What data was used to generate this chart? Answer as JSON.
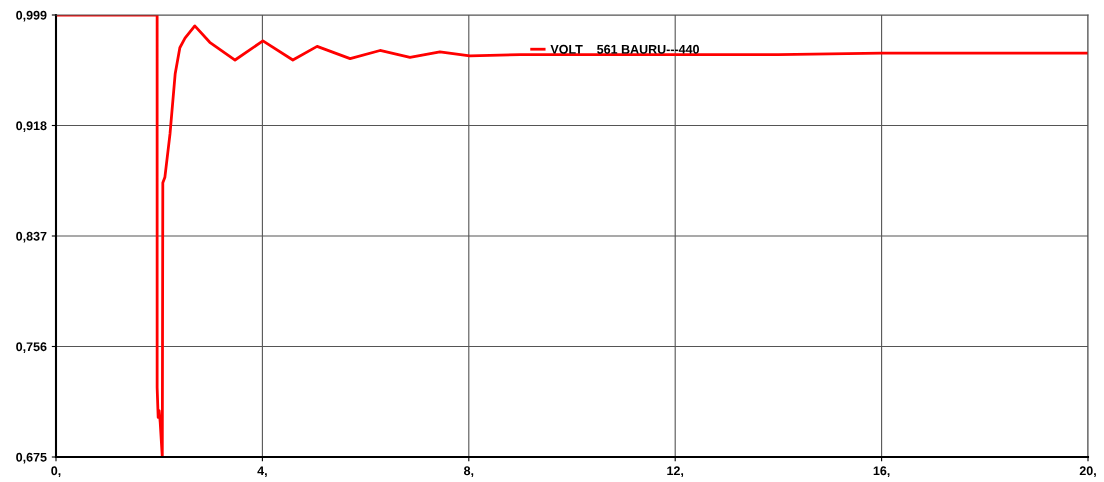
{
  "chart_data": {
    "type": "line",
    "x": [
      0,
      1.96,
      1.96,
      1.98,
      2.0,
      2.02,
      2.06,
      2.07,
      2.11,
      2.21,
      2.31,
      2.4,
      2.5,
      2.69,
      2.98,
      3.47,
      4.01,
      4.59,
      5.06,
      5.7,
      6.28,
      6.86,
      7.44,
      8.02,
      9,
      10,
      12,
      14,
      16,
      18,
      20
    ],
    "series": [
      {
        "name": "VOLT    561 BAURU---440",
        "color": "#ff0000",
        "values": [
          0.999,
          0.999,
          0.726,
          0.704,
          0.709,
          0.7,
          0.675,
          0.876,
          0.88,
          0.912,
          0.956,
          0.975,
          0.982,
          0.991,
          0.979,
          0.966,
          0.98,
          0.966,
          0.976,
          0.967,
          0.973,
          0.968,
          0.972,
          0.969,
          0.97,
          0.97,
          0.97,
          0.97,
          0.971,
          0.971,
          0.971
        ]
      }
    ],
    "xlim": [
      0,
      20
    ],
    "ylim": [
      0.675,
      0.999
    ],
    "xticks": [
      {
        "value": 0,
        "label": "0,"
      },
      {
        "value": 4,
        "label": "4,"
      },
      {
        "value": 8,
        "label": "8,"
      },
      {
        "value": 12,
        "label": "12,"
      },
      {
        "value": 16,
        "label": "16,"
      },
      {
        "value": 20,
        "label": "20,"
      }
    ],
    "yticks": [
      {
        "value": 0.675,
        "label": "0,675"
      },
      {
        "value": 0.756,
        "label": "0,756"
      },
      {
        "value": 0.837,
        "label": "0,837"
      },
      {
        "value": 0.918,
        "label": "0,918"
      },
      {
        "value": 0.999,
        "label": "0,999"
      }
    ],
    "grid": true,
    "legend": "top",
    "marker": "none",
    "line_style": "solid"
  }
}
